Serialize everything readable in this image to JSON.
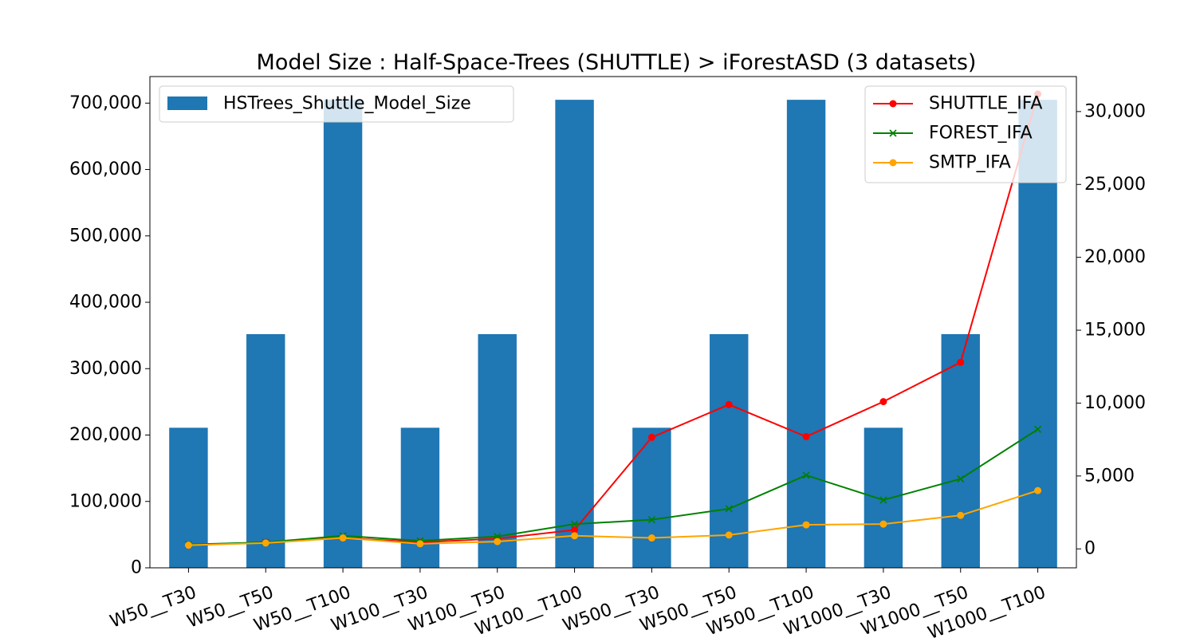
{
  "chart_data": {
    "type": "bar+line",
    "title": "Model Size : Half-Space-Trees (SHUTTLE) > iForestASD (3 datasets)",
    "categories": [
      "W50__T30",
      "W50__T50",
      "W50__T100",
      "W100__T30",
      "W100__T50",
      "W100__T100",
      "W500__T30",
      "W500__T50",
      "W500__T100",
      "W1000__T30",
      "W1000__T50",
      "W1000__T100"
    ],
    "bar_series": {
      "name": "HSTrees_Shuttle_Model_Size",
      "color": "#1f77b4",
      "axis": "left",
      "values": [
        211000,
        352000,
        705000,
        211000,
        352000,
        705000,
        211000,
        352000,
        705000,
        211000,
        352000,
        705000
      ]
    },
    "line_series": [
      {
        "name": "SHUTTLE_IFA",
        "color": "#ff0000",
        "marker": "circle",
        "axis": "right",
        "values": [
          250,
          450,
          750,
          450,
          700,
          1300,
          7650,
          9900,
          7700,
          10100,
          12800,
          31200
        ]
      },
      {
        "name": "FOREST_IFA",
        "color": "#008000",
        "marker": "x",
        "axis": "right",
        "values": [
          300,
          450,
          900,
          550,
          850,
          1700,
          2000,
          2750,
          5050,
          3350,
          4800,
          8200
        ]
      },
      {
        "name": "SMTP_IFA",
        "color": "#ffa500",
        "marker": "circle",
        "axis": "right",
        "values": [
          250,
          400,
          750,
          350,
          500,
          900,
          750,
          950,
          1650,
          1700,
          2300,
          4000
        ]
      }
    ],
    "y_left": {
      "ylim": [
        0,
        740000
      ],
      "ticks": [
        0,
        100000,
        200000,
        300000,
        400000,
        500000,
        600000,
        700000
      ],
      "tick_labels": [
        "0",
        "100,000",
        "200,000",
        "300,000",
        "400,000",
        "500,000",
        "600,000",
        "700,000"
      ]
    },
    "y_right": {
      "ylim": [
        -1300,
        32400
      ],
      "ticks": [
        0,
        5000,
        10000,
        15000,
        20000,
        25000,
        30000
      ],
      "tick_labels": [
        "0",
        "5,000",
        "10,000",
        "15,000",
        "20,000",
        "25,000",
        "30,000"
      ]
    },
    "grid": false,
    "legend_left": "top-left",
    "legend_right": "top-right"
  }
}
